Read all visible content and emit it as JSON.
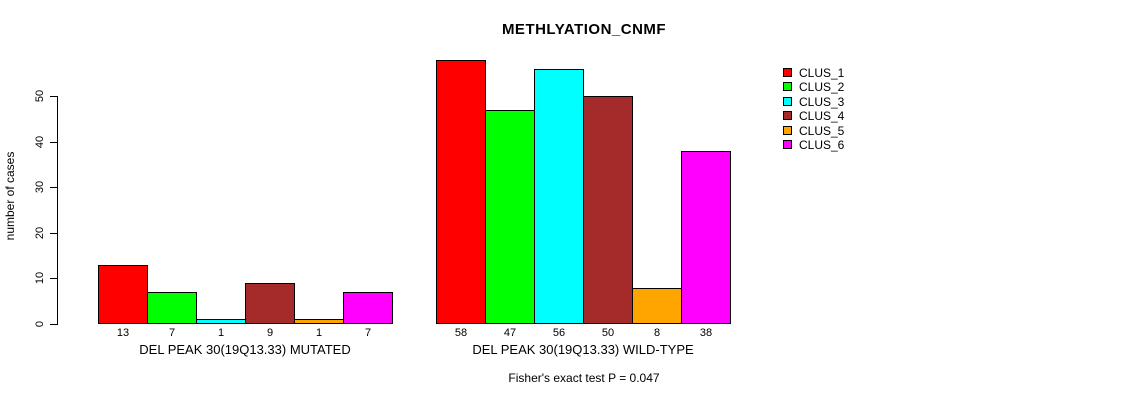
{
  "chart_data": {
    "type": "bar",
    "title": "METHLYATION_CNMF",
    "ylabel": "number of cases",
    "ylim": [
      0,
      50
    ],
    "yticks": [
      0,
      10,
      20,
      30,
      40,
      50
    ],
    "grid": false,
    "legend_position": "right",
    "series": [
      "CLUS_1",
      "CLUS_2",
      "CLUS_3",
      "CLUS_4",
      "CLUS_5",
      "CLUS_6"
    ],
    "colors": [
      "#FF0000",
      "#00FF00",
      "#00FFFF",
      "#A52A2A",
      "#FFA500",
      "#FF00FF"
    ],
    "groups": [
      {
        "label": "DEL PEAK 30(19Q13.33) MUTATED",
        "values": [
          13,
          7,
          1,
          9,
          1,
          7
        ]
      },
      {
        "label": "DEL PEAK 30(19Q13.33) WILD-TYPE",
        "values": [
          58,
          47,
          56,
          50,
          8,
          38
        ]
      }
    ],
    "value_labels_shown": true,
    "footnote": "Fisher's exact test P = 0.047",
    "text_color": "#000000",
    "background_color": "#FFFFFF"
  }
}
